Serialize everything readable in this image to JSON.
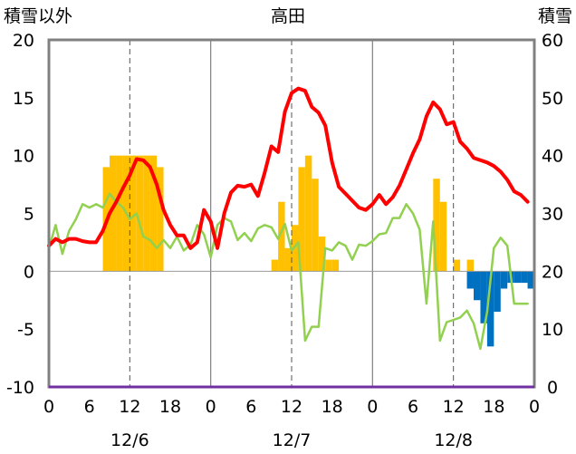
{
  "chart_data": {
    "type": "bar+line",
    "title": "高田",
    "y_left_label": "積雪以外",
    "y_right_label": "積雪",
    "y_left_range": [
      -10,
      20
    ],
    "y_left_ticks": [
      20,
      15,
      10,
      5,
      0,
      -5,
      -10
    ],
    "y_right_range": [
      0,
      60
    ],
    "y_right_ticks": [
      60,
      50,
      40,
      30,
      20,
      10,
      0
    ],
    "x_range_hours": [
      0,
      72
    ],
    "x_tick_labels": [
      "0",
      "6",
      "12",
      "18",
      "0",
      "6",
      "12",
      "18",
      "0",
      "6",
      "12",
      "18",
      "0"
    ],
    "day_labels": [
      "12/6",
      "12/7",
      "12/8"
    ],
    "grid": "dashed verticals at 12h, solid verticals at day boundaries",
    "colors": {
      "frame": "#808080",
      "red_line": "#ff0000",
      "green_line": "#92d050",
      "orange_bar": "#ffc000",
      "blue_bar": "#0070c0",
      "bottom_line": "#7030a0"
    },
    "orange_bars": {
      "x": [
        8,
        9,
        10,
        11,
        12,
        13,
        14,
        15,
        16,
        33,
        34,
        35,
        36,
        37,
        38,
        39,
        40,
        41,
        42,
        57,
        58,
        60,
        62
      ],
      "values": [
        9,
        10,
        10,
        10,
        10,
        10,
        10,
        10,
        9,
        1,
        6,
        2,
        4,
        9,
        10,
        8,
        3,
        1,
        1,
        8,
        6,
        1,
        1
      ]
    },
    "blue_bars": {
      "x": [
        62,
        63,
        64,
        65,
        66,
        67,
        68,
        69,
        70,
        71
      ],
      "values": [
        -1.5,
        -2.5,
        -4.5,
        -6.5,
        -3.5,
        -1.5,
        -1,
        -1,
        -1,
        -1.5
      ]
    },
    "red_series": {
      "x": [
        0,
        1,
        2,
        3,
        4,
        5,
        6,
        7,
        8,
        9,
        10,
        11,
        12,
        13,
        14,
        15,
        16,
        17,
        18,
        19,
        20,
        21,
        22,
        23,
        24,
        25,
        26,
        27,
        28,
        29,
        30,
        31,
        32,
        33,
        34,
        35,
        36,
        37,
        38,
        39,
        40,
        41,
        42,
        43,
        44,
        45,
        46,
        47,
        48,
        49,
        50,
        51,
        52,
        53,
        54,
        55,
        56,
        57,
        58,
        59,
        60,
        61,
        62,
        63,
        64,
        65,
        66,
        67,
        68,
        69,
        70,
        71
      ],
      "values": [
        2.2,
        2.8,
        2.5,
        2.8,
        2.8,
        2.6,
        2.5,
        2.5,
        3.5,
        5.0,
        6.0,
        7.2,
        8.3,
        9.7,
        9.6,
        9.0,
        7.5,
        5.3,
        4.0,
        3.1,
        3.1,
        2.0,
        2.5,
        5.3,
        4.3,
        2.0,
        5.0,
        6.8,
        7.4,
        7.3,
        7.5,
        6.5,
        8.5,
        10.8,
        10.3,
        13.8,
        15.4,
        15.8,
        15.6,
        14.2,
        13.7,
        12.6,
        9.4,
        7.3,
        6.7,
        6.1,
        5.5,
        5.3,
        5.8,
        6.6,
        5.8,
        6.4,
        7.4,
        8.8,
        10.2,
        11.4,
        13.4,
        14.6,
        14.0,
        12.7,
        12.9,
        11.2,
        10.6,
        9.8,
        9.6,
        9.4,
        9.1,
        8.6,
        7.9,
        6.9,
        6.6,
        6.0
      ]
    },
    "green_series": {
      "x": [
        0,
        1,
        2,
        3,
        4,
        5,
        6,
        7,
        8,
        9,
        10,
        11,
        12,
        13,
        14,
        15,
        16,
        17,
        18,
        19,
        20,
        21,
        22,
        23,
        24,
        25,
        26,
        27,
        28,
        29,
        30,
        31,
        32,
        33,
        34,
        35,
        36,
        37,
        38,
        39,
        40,
        41,
        42,
        43,
        44,
        45,
        46,
        47,
        48,
        49,
        50,
        51,
        52,
        53,
        54,
        55,
        56,
        57,
        58,
        59,
        60,
        61,
        62,
        63,
        64,
        65,
        66,
        67,
        68,
        69,
        70,
        71
      ],
      "values": [
        2.0,
        4.0,
        1.5,
        3.5,
        4.5,
        5.8,
        5.5,
        5.8,
        5.5,
        6.7,
        6.0,
        5.5,
        4.5,
        5.0,
        3.0,
        2.7,
        2.0,
        2.7,
        2.0,
        3.0,
        1.8,
        2.3,
        4.0,
        3.2,
        1.2,
        4.0,
        4.6,
        4.3,
        2.7,
        3.3,
        2.6,
        3.7,
        4.0,
        3.8,
        2.8,
        4.1,
        1.8,
        2.5,
        -6.0,
        -4.8,
        -4.8,
        2.0,
        1.8,
        2.5,
        2.2,
        1.0,
        2.3,
        2.2,
        2.6,
        3.2,
        3.3,
        4.6,
        4.6,
        5.8,
        5.0,
        3.6,
        -2.8,
        4.3,
        -6.0,
        -4.4,
        -4.2,
        -4.0,
        -3.4,
        -4.5,
        -6.7,
        -3.5,
        2.0,
        2.9,
        2.2,
        -2.8,
        -2.8,
        -2.8
      ]
    }
  }
}
